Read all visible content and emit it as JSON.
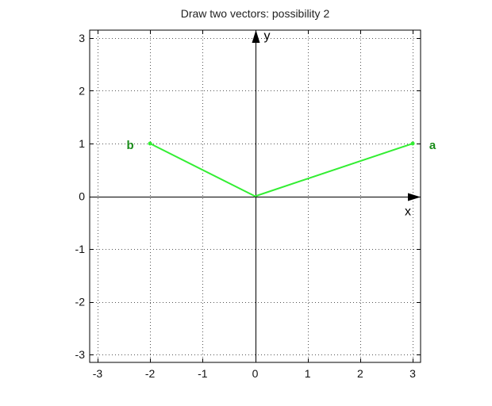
{
  "chart_data": {
    "type": "line",
    "title": "Draw two vectors: possibility 2",
    "xlabel": "x",
    "ylabel": "y",
    "xlim": [
      -3.15,
      3.15
    ],
    "ylim": [
      -3.15,
      3.15
    ],
    "x_ticks": [
      -3,
      -2,
      -1,
      0,
      1,
      2,
      3
    ],
    "y_ticks": [
      -3,
      -2,
      -1,
      0,
      1,
      2,
      3
    ],
    "x_tick_labels": [
      "-3",
      "-2",
      "-1",
      "0",
      "1",
      "2",
      "3"
    ],
    "y_tick_labels": [
      "-3",
      "-2",
      "-1",
      "0",
      "1",
      "2",
      "3"
    ],
    "grid": true,
    "series": [
      {
        "name": "a",
        "x": [
          0,
          3
        ],
        "y": [
          0,
          1
        ]
      },
      {
        "name": "b",
        "x": [
          0,
          -2
        ],
        "y": [
          0,
          1
        ]
      }
    ]
  },
  "colors": {
    "vector": "#33ee33",
    "label": "#1a8c1a",
    "axis": "#000000",
    "grid": "#555555"
  }
}
